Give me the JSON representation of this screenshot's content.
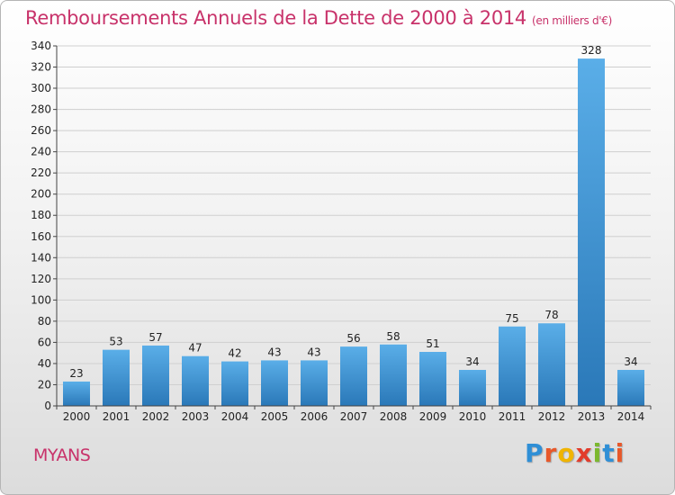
{
  "header": {
    "title": "Remboursements Annuels de la Dette de 2000 à 2014",
    "subtitle": "(en milliers d'€)"
  },
  "footer": {
    "place": "MYANS",
    "logo": {
      "text": "Proxiti",
      "letters": [
        "P",
        "r",
        "o",
        "x",
        "i",
        "t",
        "i"
      ]
    }
  },
  "colors": {
    "title": "#c8326a",
    "bar_top": "#5aaee8",
    "bar_bottom": "#2a78b8",
    "logo": [
      "#2f8fd6",
      "#e8582a",
      "#f0b400",
      "#e23c2c",
      "#7cb82f",
      "#2f8fd6",
      "#e8582a"
    ]
  },
  "chart_data": {
    "type": "bar",
    "title": "Remboursements Annuels de la Dette de 2000 à 2014",
    "subtitle": "(en milliers d'€)",
    "xlabel": "",
    "ylabel": "",
    "categories": [
      "2000",
      "2001",
      "2002",
      "2003",
      "2004",
      "2005",
      "2006",
      "2007",
      "2008",
      "2009",
      "2010",
      "2011",
      "2012",
      "2013",
      "2014"
    ],
    "values": [
      23,
      53,
      57,
      47,
      42,
      43,
      43,
      56,
      58,
      51,
      34,
      75,
      78,
      328,
      34
    ],
    "ylim": [
      0,
      340
    ],
    "yticks": [
      0,
      20,
      40,
      60,
      80,
      100,
      120,
      140,
      160,
      180,
      200,
      220,
      240,
      260,
      280,
      300,
      320,
      340
    ],
    "grid": true,
    "legend": "none"
  }
}
